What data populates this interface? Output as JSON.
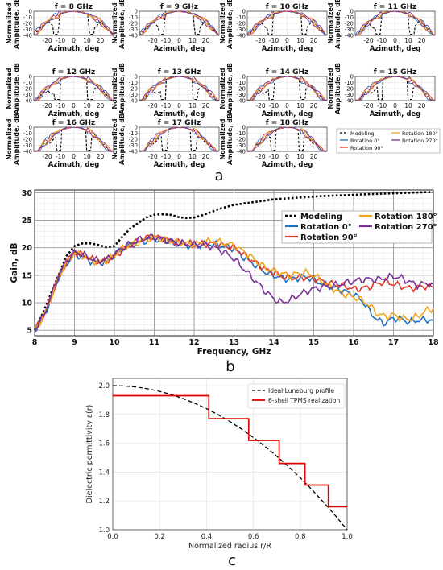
{
  "panel_labels": {
    "a": "a",
    "b": "b",
    "c": "c"
  },
  "colors": {
    "modeling": "#000000",
    "rot0": "#1f6fbf",
    "rot90": "#e23a2a",
    "rot180": "#f2a51a",
    "rot270": "#7b3294",
    "lune": "#000000",
    "tpms": "#e00000",
    "grid": "#bdbdbd"
  },
  "chart_data": [
    {
      "type": "line",
      "panel": "a",
      "small_multiples": true,
      "subplots": [
        {
          "title": "f = 8 GHz",
          "f": 8
        },
        {
          "title": "f = 9 GHz",
          "f": 9
        },
        {
          "title": "f = 10 GHz",
          "f": 10
        },
        {
          "title": "f = 11 GHz",
          "f": 11
        },
        {
          "title": "f = 12 GHz",
          "f": 12
        },
        {
          "title": "f = 13 GHz",
          "f": 13
        },
        {
          "title": "f = 14 GHz",
          "f": 14
        },
        {
          "title": "f = 15 GHz",
          "f": 15
        },
        {
          "title": "f = 16 GHz",
          "f": 16
        },
        {
          "title": "f = 17 GHz",
          "f": 17
        },
        {
          "title": "f = 18 GHz",
          "f": 18
        }
      ],
      "xlabel": "Azimuth, deg",
      "ylabel": "Normalized Amplitude, dB",
      "ylabel_lines": [
        "Normalized",
        "Amplitude, dB"
      ],
      "xlim": [
        -30,
        30
      ],
      "ylim": [
        -40,
        0
      ],
      "xticks": [
        -20,
        -10,
        0,
        10,
        20
      ],
      "yticks": [
        0,
        -10,
        -20,
        -30,
        -40
      ],
      "legend": [
        "Modeling",
        "Rotation 0°",
        "Rotation 90°",
        "Rotation 180°",
        "Rotation 270°"
      ],
      "series_styles": [
        "modeling",
        "rot0",
        "rot90",
        "rot180",
        "rot270"
      ]
    },
    {
      "type": "line",
      "panel": "b",
      "xlabel": "Frequency, GHz",
      "ylabel": "Gain, dB",
      "xlim": [
        8,
        18
      ],
      "ylim": [
        4,
        30.5
      ],
      "xticks": [
        8,
        9,
        10,
        11,
        12,
        13,
        14,
        15,
        16,
        17,
        18
      ],
      "yticks": [
        5,
        10,
        15,
        20,
        25,
        30
      ],
      "grid": true,
      "legend_position": "top-right",
      "x": [
        8.0,
        8.2,
        8.4,
        8.6,
        8.8,
        9.0,
        9.2,
        9.4,
        9.6,
        9.8,
        10.0,
        10.2,
        10.4,
        10.6,
        10.8,
        11.0,
        11.2,
        11.4,
        11.6,
        11.8,
        12.0,
        12.2,
        12.4,
        12.6,
        12.8,
        13.0,
        13.2,
        13.4,
        13.6,
        13.8,
        14.0,
        14.2,
        14.4,
        14.6,
        14.8,
        15.0,
        15.2,
        15.4,
        15.6,
        15.8,
        16.0,
        16.2,
        16.4,
        16.6,
        16.8,
        17.0,
        17.2,
        17.4,
        17.6,
        17.8,
        18.0
      ],
      "series": [
        {
          "name": "Modeling",
          "style": "modeling",
          "values": [
            5.0,
            8.0,
            11.5,
            15.0,
            18.5,
            20.3,
            20.8,
            20.8,
            20.5,
            20.1,
            20.3,
            22.0,
            23.5,
            24.5,
            25.5,
            26.0,
            26.1,
            26.0,
            25.6,
            25.4,
            25.5,
            25.9,
            26.4,
            27.0,
            27.4,
            27.8,
            28.0,
            28.2,
            28.4,
            28.6,
            28.8,
            28.9,
            29.0,
            29.1,
            29.2,
            29.3,
            29.4,
            29.45,
            29.5,
            29.55,
            29.6,
            29.7,
            29.75,
            29.8,
            29.85,
            29.9,
            29.95,
            30.0,
            30.05,
            30.1,
            30.1
          ]
        },
        {
          "name": "Rotation 0°",
          "style": "rot0",
          "values": [
            5.0,
            7.0,
            10.5,
            14.5,
            17.0,
            18.8,
            18.3,
            17.6,
            17.2,
            17.5,
            18.5,
            19.8,
            20.5,
            20.8,
            21.3,
            21.6,
            21.2,
            21.0,
            20.7,
            20.5,
            20.4,
            20.6,
            20.7,
            20.5,
            20.2,
            19.8,
            18.5,
            17.5,
            16.5,
            15.5,
            15.0,
            14.5,
            14.3,
            14.5,
            14.7,
            14.2,
            13.5,
            13.0,
            12.5,
            12.0,
            11.5,
            10.5,
            8.5,
            6.8,
            6.3,
            7.2,
            7.0,
            6.5,
            6.8,
            6.9,
            6.8
          ]
        },
        {
          "name": "Rotation 90°",
          "style": "rot90",
          "values": [
            5.0,
            7.2,
            10.8,
            14.8,
            17.5,
            19.2,
            18.7,
            18.0,
            17.4,
            17.7,
            18.5,
            19.5,
            20.5,
            21.2,
            21.7,
            22.0,
            21.7,
            21.2,
            21.0,
            20.8,
            20.6,
            20.7,
            20.8,
            20.6,
            20.3,
            20.0,
            19.0,
            18.0,
            17.0,
            16.0,
            15.5,
            14.8,
            14.5,
            14.6,
            14.6,
            14.4,
            14.0,
            13.5,
            13.2,
            13.0,
            12.5,
            12.6,
            12.9,
            13.5,
            13.8,
            13.4,
            13.0,
            12.6,
            12.8,
            13.0,
            12.8
          ]
        },
        {
          "name": "Rotation 180°",
          "style": "rot180",
          "values": [
            5.0,
            7.1,
            10.6,
            14.6,
            17.3,
            19.0,
            18.6,
            17.8,
            17.3,
            17.6,
            18.6,
            19.9,
            20.6,
            21.0,
            21.5,
            21.8,
            21.5,
            21.2,
            21.0,
            20.8,
            20.7,
            20.9,
            21.2,
            21.1,
            20.8,
            20.4,
            19.5,
            18.5,
            17.3,
            16.3,
            15.8,
            15.3,
            15.0,
            15.3,
            15.5,
            15.0,
            14.0,
            13.0,
            12.0,
            11.5,
            11.0,
            10.5,
            9.5,
            8.0,
            7.5,
            7.8,
            7.2,
            7.0,
            7.5,
            8.5,
            9.0
          ]
        },
        {
          "name": "Rotation 270°",
          "style": "rot270",
          "values": [
            5.0,
            7.3,
            10.9,
            15.0,
            17.6,
            19.3,
            18.8,
            18.1,
            17.6,
            17.9,
            18.8,
            20.0,
            20.8,
            21.4,
            21.8,
            22.0,
            21.6,
            21.2,
            20.9,
            20.7,
            20.5,
            20.5,
            20.3,
            19.8,
            19.0,
            18.0,
            16.5,
            15.0,
            13.5,
            12.0,
            10.7,
            10.0,
            10.5,
            11.3,
            12.0,
            12.5,
            12.8,
            13.0,
            13.3,
            13.6,
            13.9,
            14.2,
            14.3,
            14.2,
            14.5,
            14.8,
            14.5,
            13.8,
            13.2,
            13.5,
            13.4
          ]
        }
      ]
    },
    {
      "type": "line",
      "panel": "c",
      "xlabel": "Normalized radius r/R",
      "ylabel": "Dielectric permittivity ε(r)",
      "xlim": [
        0,
        1
      ],
      "ylim": [
        1.0,
        2.05
      ],
      "xticks": [
        0.0,
        0.2,
        0.4,
        0.6,
        0.8,
        1.0
      ],
      "yticks": [
        1.0,
        1.2,
        1.4,
        1.6,
        1.8,
        2.0
      ],
      "grid": true,
      "legend_position": "top-right",
      "series": [
        {
          "name": "Ideal Luneburg profile",
          "style": "lune",
          "formula": "eps = 2 - (r/R)^2",
          "x": [
            0,
            0.05,
            0.1,
            0.15,
            0.2,
            0.25,
            0.3,
            0.35,
            0.4,
            0.45,
            0.5,
            0.55,
            0.6,
            0.65,
            0.7,
            0.75,
            0.8,
            0.85,
            0.9,
            0.95,
            1.0
          ],
          "values": [
            2.0,
            1.9975,
            1.99,
            1.9775,
            1.96,
            1.9375,
            1.91,
            1.8775,
            1.84,
            1.7975,
            1.75,
            1.6975,
            1.64,
            1.5775,
            1.51,
            1.4375,
            1.36,
            1.2775,
            1.19,
            1.0975,
            1.0
          ]
        },
        {
          "name": "6-shell TPMS realization",
          "style": "tpms",
          "steps": [
            {
              "r_from": 0.0,
              "r_to": 0.41,
              "eps": 1.93
            },
            {
              "r_from": 0.41,
              "r_to": 0.58,
              "eps": 1.77
            },
            {
              "r_from": 0.58,
              "r_to": 0.71,
              "eps": 1.62
            },
            {
              "r_from": 0.71,
              "r_to": 0.82,
              "eps": 1.46
            },
            {
              "r_from": 0.82,
              "r_to": 0.92,
              "eps": 1.31
            },
            {
              "r_from": 0.92,
              "r_to": 1.0,
              "eps": 1.16
            }
          ]
        }
      ]
    }
  ]
}
